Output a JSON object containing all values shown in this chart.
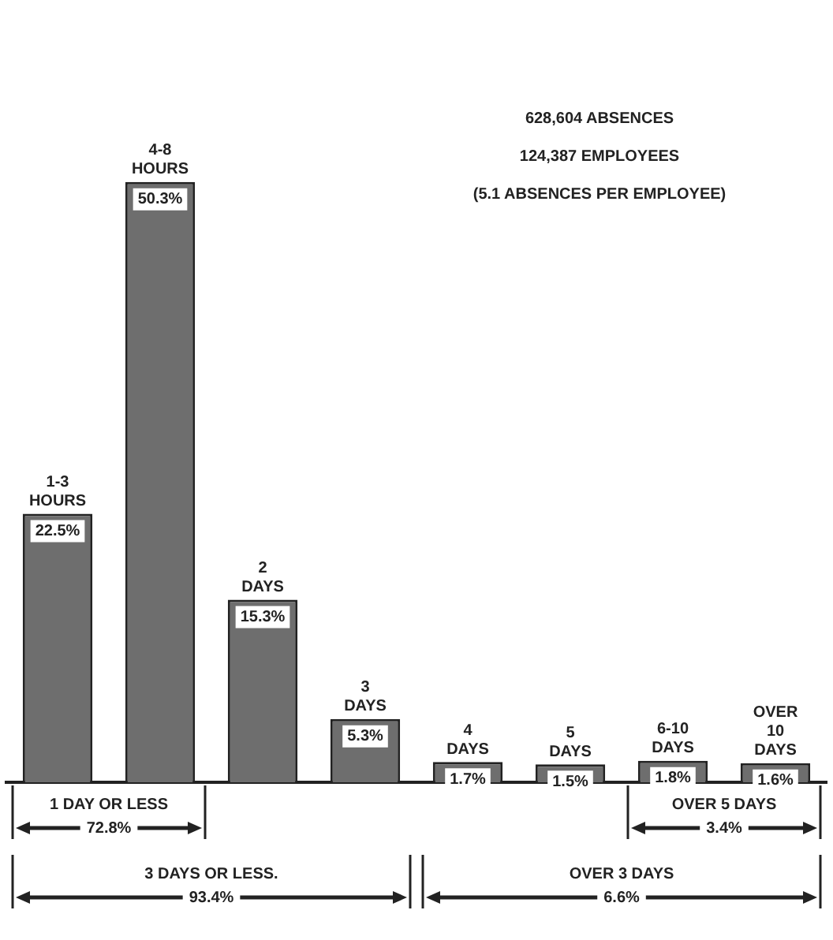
{
  "chart_data": {
    "type": "bar",
    "categories": [
      "1-3\nHOURS",
      "4-8\nHOURS",
      "2\nDAYS",
      "3\nDAYS",
      "4\nDAYS",
      "5\nDAYS",
      "6-10\nDAYS",
      "OVER\n10\nDAYS"
    ],
    "values": [
      22.5,
      50.3,
      15.3,
      5.3,
      1.7,
      1.5,
      1.8,
      1.6
    ],
    "color": "#6e6e6e",
    "value_labels": [
      "22.5%",
      "50.3%",
      "15.3%",
      "5.3%",
      "1.7%",
      "1.5%",
      "1.8%",
      "1.6%"
    ],
    "annotations": [
      "628,604 ABSENCES",
      "124,387 EMPLOYEES",
      "(5.1 ABSENCES PER EMPLOYEE)",
      "1 DAY OR LESS",
      "72.8%",
      "3 DAYS OR LESS.",
      "93.4%",
      "OVER 3 DAYS",
      "6.6%",
      "OVER 5 DAYS",
      "3.4%"
    ],
    "grid": false,
    "legend": false
  }
}
